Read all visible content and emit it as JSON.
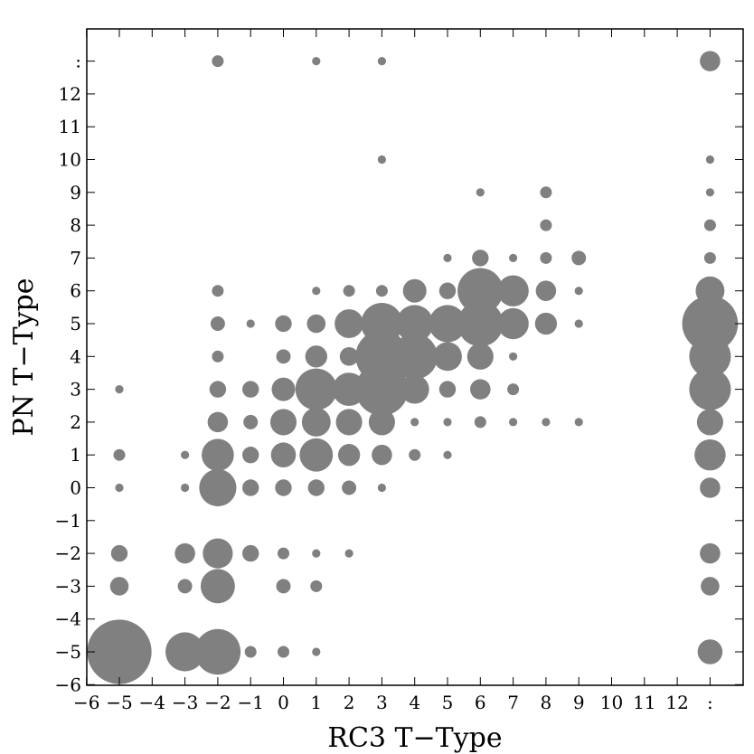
{
  "chart_data": {
    "type": "scatter",
    "title": "",
    "xlabel": "RC3 T−Type",
    "ylabel": "PN T−Type",
    "xlim": [
      -6,
      14
    ],
    "ylim": [
      -6,
      14
    ],
    "grid": false,
    "marker_color": "#808080",
    "x_ticks": [
      {
        "pos": -6,
        "label": "−6"
      },
      {
        "pos": -5,
        "label": "−5"
      },
      {
        "pos": -4,
        "label": "−4"
      },
      {
        "pos": -3,
        "label": "−3"
      },
      {
        "pos": -2,
        "label": "−2"
      },
      {
        "pos": -1,
        "label": "−1"
      },
      {
        "pos": 0,
        "label": "0"
      },
      {
        "pos": 1,
        "label": "1"
      },
      {
        "pos": 2,
        "label": "2"
      },
      {
        "pos": 3,
        "label": "3"
      },
      {
        "pos": 4,
        "label": "4"
      },
      {
        "pos": 5,
        "label": "5"
      },
      {
        "pos": 6,
        "label": "6"
      },
      {
        "pos": 7,
        "label": "7"
      },
      {
        "pos": 8,
        "label": "8"
      },
      {
        "pos": 9,
        "label": "9"
      },
      {
        "pos": 10,
        "label": "10"
      },
      {
        "pos": 11,
        "label": "11"
      },
      {
        "pos": 12,
        "label": "12"
      },
      {
        "pos": 13,
        "label": ":"
      }
    ],
    "y_ticks": [
      {
        "pos": -6,
        "label": "−6"
      },
      {
        "pos": -5,
        "label": "−5"
      },
      {
        "pos": -4,
        "label": "−4"
      },
      {
        "pos": -3,
        "label": "−3"
      },
      {
        "pos": -2,
        "label": "−2"
      },
      {
        "pos": -1,
        "label": "−1"
      },
      {
        "pos": 0,
        "label": "0"
      },
      {
        "pos": 1,
        "label": "1"
      },
      {
        "pos": 2,
        "label": "2"
      },
      {
        "pos": 3,
        "label": "3"
      },
      {
        "pos": 4,
        "label": "4"
      },
      {
        "pos": 5,
        "label": "5"
      },
      {
        "pos": 6,
        "label": "6"
      },
      {
        "pos": 7,
        "label": "7"
      },
      {
        "pos": 8,
        "label": "8"
      },
      {
        "pos": 9,
        "label": "9"
      },
      {
        "pos": 10,
        "label": "10"
      },
      {
        "pos": 11,
        "label": "11"
      },
      {
        "pos": 12,
        "label": "12"
      },
      {
        "pos": 13,
        "label": ":"
      }
    ],
    "size_unit": "relative marker size (count-proportional)",
    "points": [
      {
        "x": -5,
        "y": 3,
        "s": 1
      },
      {
        "x": -5,
        "y": 1,
        "s": 2
      },
      {
        "x": -5,
        "y": 0,
        "s": 1
      },
      {
        "x": -5,
        "y": -2,
        "s": 4
      },
      {
        "x": -5,
        "y": -3,
        "s": 5
      },
      {
        "x": -5,
        "y": -5,
        "s": 60
      },
      {
        "x": -3,
        "y": 1,
        "s": 1
      },
      {
        "x": -3,
        "y": 0,
        "s": 1
      },
      {
        "x": -3,
        "y": -2,
        "s": 6
      },
      {
        "x": -3,
        "y": -3,
        "s": 3
      },
      {
        "x": -3,
        "y": -5,
        "s": 22
      },
      {
        "x": -2,
        "y": 13,
        "s": 2
      },
      {
        "x": -2,
        "y": 6,
        "s": 2
      },
      {
        "x": -2,
        "y": 5,
        "s": 3
      },
      {
        "x": -2,
        "y": 4,
        "s": 2
      },
      {
        "x": -2,
        "y": 3,
        "s": 4
      },
      {
        "x": -2,
        "y": 2,
        "s": 6
      },
      {
        "x": -2,
        "y": 1,
        "s": 15
      },
      {
        "x": -2,
        "y": 0,
        "s": 20
      },
      {
        "x": -2,
        "y": -2,
        "s": 13
      },
      {
        "x": -2,
        "y": -3,
        "s": 17
      },
      {
        "x": -2,
        "y": -5,
        "s": 30
      },
      {
        "x": -1,
        "y": 5,
        "s": 1
      },
      {
        "x": -1,
        "y": 3,
        "s": 4
      },
      {
        "x": -1,
        "y": 2,
        "s": 3
      },
      {
        "x": -1,
        "y": 1,
        "s": 4
      },
      {
        "x": -1,
        "y": 0,
        "s": 4
      },
      {
        "x": -1,
        "y": -2,
        "s": 4
      },
      {
        "x": -1,
        "y": -5,
        "s": 2
      },
      {
        "x": 0,
        "y": 5,
        "s": 4
      },
      {
        "x": 0,
        "y": 4,
        "s": 3
      },
      {
        "x": 0,
        "y": 3,
        "s": 8
      },
      {
        "x": 0,
        "y": 2,
        "s": 10
      },
      {
        "x": 0,
        "y": 1,
        "s": 9
      },
      {
        "x": 0,
        "y": 0,
        "s": 4
      },
      {
        "x": 0,
        "y": -2,
        "s": 2
      },
      {
        "x": 0,
        "y": -3,
        "s": 3
      },
      {
        "x": 0,
        "y": -5,
        "s": 2
      },
      {
        "x": 1,
        "y": 13,
        "s": 1
      },
      {
        "x": 1,
        "y": 6,
        "s": 1
      },
      {
        "x": 1,
        "y": 5,
        "s": 5
      },
      {
        "x": 1,
        "y": 4,
        "s": 7
      },
      {
        "x": 1,
        "y": 3,
        "s": 25
      },
      {
        "x": 1,
        "y": 2,
        "s": 12
      },
      {
        "x": 1,
        "y": 1,
        "s": 16
      },
      {
        "x": 1,
        "y": 0,
        "s": 4
      },
      {
        "x": 1,
        "y": -2,
        "s": 1
      },
      {
        "x": 1,
        "y": -3,
        "s": 2
      },
      {
        "x": 1,
        "y": -5,
        "s": 1
      },
      {
        "x": 2,
        "y": 6,
        "s": 2
      },
      {
        "x": 2,
        "y": 5,
        "s": 12
      },
      {
        "x": 2,
        "y": 4,
        "s": 5
      },
      {
        "x": 2,
        "y": 3,
        "s": 16
      },
      {
        "x": 2,
        "y": 2,
        "s": 10
      },
      {
        "x": 2,
        "y": 1,
        "s": 7
      },
      {
        "x": 2,
        "y": 0,
        "s": 3
      },
      {
        "x": 2,
        "y": -2,
        "s": 1
      },
      {
        "x": 3,
        "y": 13,
        "s": 1
      },
      {
        "x": 3,
        "y": 10,
        "s": 1
      },
      {
        "x": 3,
        "y": 6,
        "s": 2
      },
      {
        "x": 3,
        "y": 5,
        "s": 25
      },
      {
        "x": 3,
        "y": 4,
        "s": 40
      },
      {
        "x": 3,
        "y": 3,
        "s": 40
      },
      {
        "x": 3,
        "y": 2,
        "s": 10
      },
      {
        "x": 3,
        "y": 1,
        "s": 6
      },
      {
        "x": 3,
        "y": 0,
        "s": 1
      },
      {
        "x": 4,
        "y": 6,
        "s": 8
      },
      {
        "x": 4,
        "y": 5,
        "s": 20
      },
      {
        "x": 4,
        "y": 4,
        "s": 30
      },
      {
        "x": 4,
        "y": 3,
        "s": 12
      },
      {
        "x": 4,
        "y": 2,
        "s": 1
      },
      {
        "x": 4,
        "y": 1,
        "s": 2
      },
      {
        "x": 5,
        "y": 7,
        "s": 1
      },
      {
        "x": 5,
        "y": 6,
        "s": 4
      },
      {
        "x": 5,
        "y": 5,
        "s": 20
      },
      {
        "x": 5,
        "y": 4,
        "s": 12
      },
      {
        "x": 5,
        "y": 3,
        "s": 4
      },
      {
        "x": 5,
        "y": 2,
        "s": 1
      },
      {
        "x": 5,
        "y": 1,
        "s": 1
      },
      {
        "x": 6,
        "y": 9,
        "s": 1
      },
      {
        "x": 6,
        "y": 7,
        "s": 4
      },
      {
        "x": 6,
        "y": 6,
        "s": 30
      },
      {
        "x": 6,
        "y": 5,
        "s": 30
      },
      {
        "x": 6,
        "y": 4,
        "s": 10
      },
      {
        "x": 6,
        "y": 3,
        "s": 6
      },
      {
        "x": 6,
        "y": 2,
        "s": 2
      },
      {
        "x": 7,
        "y": 7,
        "s": 1
      },
      {
        "x": 7,
        "y": 6,
        "s": 14
      },
      {
        "x": 7,
        "y": 5,
        "s": 14
      },
      {
        "x": 7,
        "y": 4,
        "s": 1
      },
      {
        "x": 7,
        "y": 3,
        "s": 2
      },
      {
        "x": 7,
        "y": 2,
        "s": 1
      },
      {
        "x": 8,
        "y": 9,
        "s": 2
      },
      {
        "x": 8,
        "y": 8,
        "s": 2
      },
      {
        "x": 8,
        "y": 7,
        "s": 2
      },
      {
        "x": 8,
        "y": 6,
        "s": 6
      },
      {
        "x": 8,
        "y": 5,
        "s": 7
      },
      {
        "x": 8,
        "y": 2,
        "s": 1
      },
      {
        "x": 9,
        "y": 7,
        "s": 3
      },
      {
        "x": 9,
        "y": 6,
        "s": 1
      },
      {
        "x": 9,
        "y": 5,
        "s": 1
      },
      {
        "x": 9,
        "y": 2,
        "s": 1
      },
      {
        "x": 13,
        "y": 13,
        "s": 6
      },
      {
        "x": 13,
        "y": 10,
        "s": 1
      },
      {
        "x": 13,
        "y": 9,
        "s": 1
      },
      {
        "x": 13,
        "y": 8,
        "s": 2
      },
      {
        "x": 13,
        "y": 7,
        "s": 2
      },
      {
        "x": 13,
        "y": 6,
        "s": 12
      },
      {
        "x": 13,
        "y": 5,
        "s": 45
      },
      {
        "x": 13,
        "y": 4,
        "s": 25
      },
      {
        "x": 13,
        "y": 3,
        "s": 25
      },
      {
        "x": 13,
        "y": 2,
        "s": 10
      },
      {
        "x": 13,
        "y": 1,
        "s": 14
      },
      {
        "x": 13,
        "y": 0,
        "s": 6
      },
      {
        "x": 13,
        "y": -2,
        "s": 6
      },
      {
        "x": 13,
        "y": -3,
        "s": 5
      },
      {
        "x": 13,
        "y": -5,
        "s": 9
      }
    ]
  }
}
